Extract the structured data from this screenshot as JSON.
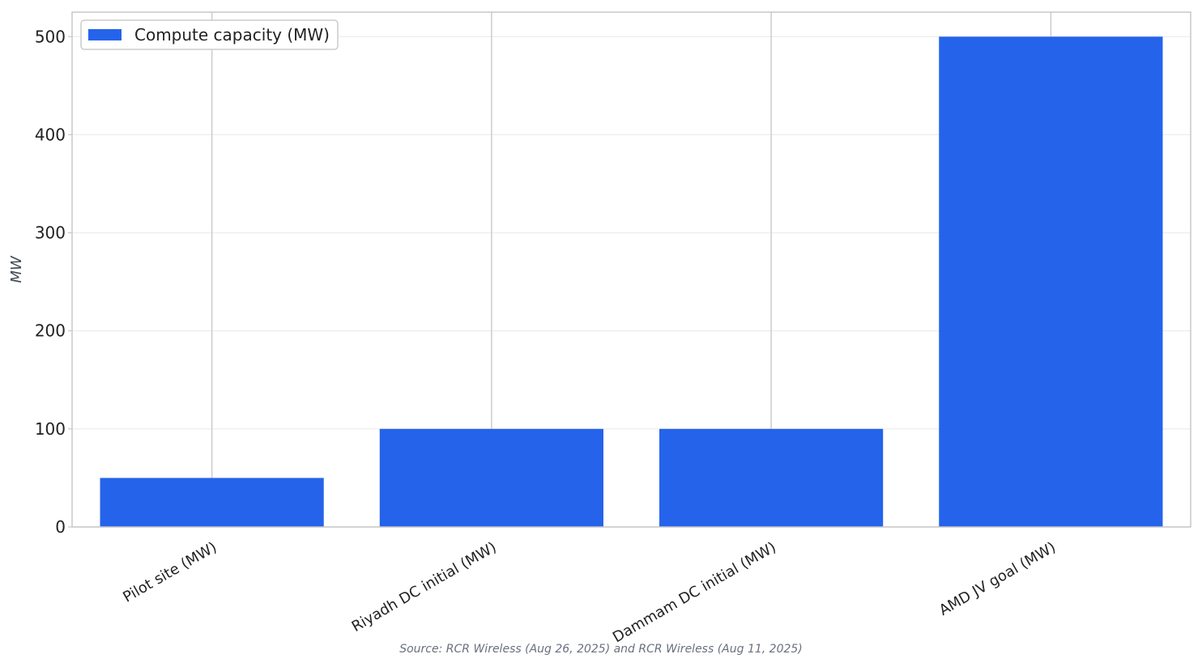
{
  "chart_data": {
    "type": "bar",
    "categories": [
      "Pilot site (MW)",
      "Riyadh DC initial (MW)",
      "Dammam DC initial (MW)",
      "AMD JV goal (MW)"
    ],
    "series": [
      {
        "name": "Compute capacity (MW)",
        "values": [
          50,
          100,
          100,
          500
        ],
        "color": "#2563eb"
      }
    ],
    "title": "",
    "xlabel": "",
    "ylabel": "MW",
    "ylim": [
      0,
      525
    ],
    "yticks": [
      0,
      100,
      200,
      300,
      400,
      500
    ],
    "grid": true,
    "legend_position": "top-left",
    "source": "Source: RCR Wireless (Aug 26, 2025) and RCR Wireless (Aug 11, 2025)"
  }
}
